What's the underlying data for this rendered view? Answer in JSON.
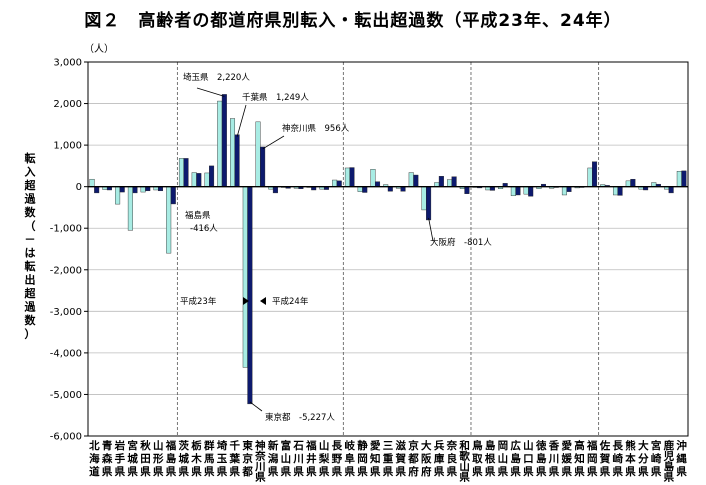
{
  "title": "図２　高齢者の都道府県別転入・転出超過数（平成23年、24年）",
  "chart_data": {
    "type": "bar",
    "unit": "（人）",
    "ylabel": "転入超過数（－は転出超過数）",
    "ylim": [
      -6000,
      3000
    ],
    "yticks": [
      3000,
      2000,
      1000,
      0,
      -1000,
      -2000,
      -3000,
      -4000,
      -5000,
      -6000
    ],
    "ytick_labels": [
      "3,000",
      "2,000",
      "1,000",
      "0",
      "-1,000",
      "-2,000",
      "-3,000",
      "-4,000",
      "-5,000",
      "-6,000"
    ],
    "categories": [
      "北海道",
      "青森県",
      "岩手県",
      "宮城県",
      "秋田県",
      "山形県",
      "福島県",
      "茨城県",
      "栃木県",
      "群馬県",
      "埼玉県",
      "千葉県",
      "東京都",
      "神奈川県",
      "新潟県",
      "富山県",
      "石川県",
      "福井県",
      "山梨県",
      "長野県",
      "岐阜県",
      "静岡県",
      "愛知県",
      "三重県",
      "滋賀県",
      "京都府",
      "大阪府",
      "兵庫県",
      "奈良県",
      "和歌山県",
      "鳥取県",
      "島根県",
      "岡山県",
      "広島県",
      "山口県",
      "徳島県",
      "香川県",
      "愛媛県",
      "高知県",
      "福岡県",
      "佐賀県",
      "長崎県",
      "熊本県",
      "大分県",
      "宮崎県",
      "鹿児島県",
      "沖縄県"
    ],
    "category_label_chars": [
      "北海道",
      "青森県",
      "岩手県",
      "宮城県",
      "秋田県",
      "山形県",
      "福島県",
      "茨城県",
      "栃木県",
      "群馬県",
      "埼玉県",
      "千葉県",
      "東京都",
      "神奈川県",
      "新潟県",
      "富山県",
      "石川県",
      "福井県",
      "山梨県",
      "長野県",
      "岐阜県",
      "静岡県",
      "愛知県",
      "三重県",
      "滋賀県",
      "京都府",
      "大阪府",
      "兵庫県",
      "奈良県",
      "和歌山県",
      "鳥取県",
      "島根県",
      "岡山県",
      "広島県",
      "山口県",
      "徳島県",
      "香川県",
      "愛媛県",
      "高知県",
      "福岡県",
      "佐賀県",
      "長崎県",
      "熊本県",
      "大分県",
      "宮崎県",
      "鹿児島県",
      "沖縄県"
    ],
    "series": [
      {
        "name": "平成23年",
        "color": "#a8ece4",
        "values": [
          180,
          -70,
          -420,
          -1050,
          -130,
          -80,
          -1600,
          680,
          340,
          330,
          2060,
          1640,
          -4350,
          1560,
          -60,
          -20,
          -40,
          -20,
          -60,
          160,
          450,
          -120,
          420,
          50,
          -40,
          340,
          -560,
          100,
          170,
          -50,
          -20,
          -80,
          -50,
          -220,
          -180,
          -50,
          -40,
          -200,
          -30,
          450,
          50,
          -200,
          140,
          -60,
          100,
          -60,
          370
        ]
      },
      {
        "name": "平成24年",
        "color": "#0d1a6e",
        "values": [
          -150,
          -80,
          -130,
          -150,
          -100,
          -100,
          -416,
          680,
          320,
          500,
          2220,
          1249,
          -5227,
          956,
          -150,
          -40,
          -50,
          -80,
          -70,
          140,
          460,
          -140,
          120,
          -110,
          -110,
          280,
          -801,
          250,
          240,
          -170,
          -30,
          -90,
          80,
          -200,
          -230,
          60,
          -20,
          -120,
          -20,
          600,
          30,
          -210,
          180,
          -80,
          60,
          -150,
          380
        ]
      }
    ],
    "annotations": [
      {
        "text": "埼玉県　2,220人",
        "category": "埼玉県",
        "series": "平成24年"
      },
      {
        "text": "千葉県　1,249人",
        "category": "千葉県",
        "series": "平成24年"
      },
      {
        "text": "神奈川県　956人",
        "category": "神奈川県",
        "series": "平成24年"
      },
      {
        "text": "福島県",
        "category": "福島県",
        "series": "平成24年"
      },
      {
        "text": "-416人",
        "category": "福島県",
        "series": "平成24年"
      },
      {
        "text": "大阪府　-801人",
        "category": "大阪府",
        "series": "平成24年"
      },
      {
        "text": "東京都　-5,227人",
        "category": "東京都",
        "series": "平成24年"
      },
      {
        "text": "平成23年",
        "category": "東京都",
        "series": "平成23年"
      },
      {
        "text": "平成24年",
        "category": "東京都",
        "series": "平成24年"
      }
    ],
    "region_separators_after": [
      "福島県",
      "長野県",
      "和歌山県",
      "福岡県"
    ],
    "grid": true,
    "legend": "none"
  }
}
